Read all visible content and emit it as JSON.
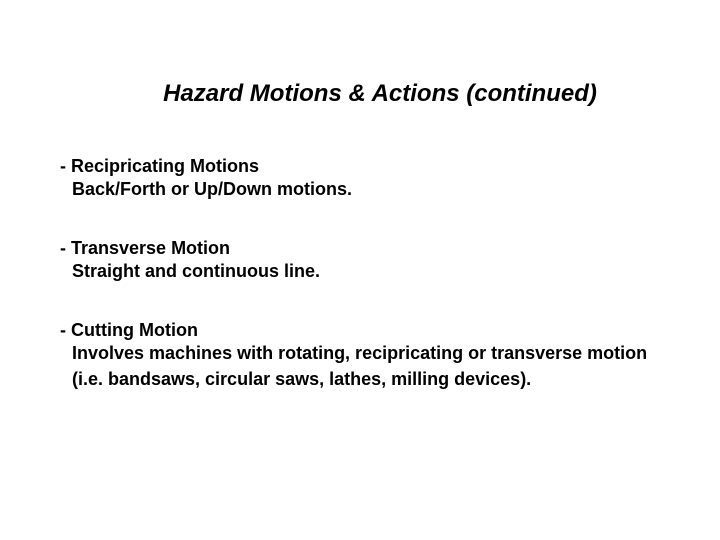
{
  "title": "Hazard Motions & Actions (continued)",
  "items": [
    {
      "heading": "- Recipricating Motions",
      "description": "Back/Forth or Up/Down motions."
    },
    {
      "heading": "- Transverse Motion",
      "description": "Straight and continuous line."
    },
    {
      "heading": "- Cutting Motion",
      "description": "Involves machines with rotating, recipricating or transverse motion (i.e. bandsaws, circular saws, lathes, milling devices)."
    }
  ],
  "style": {
    "background_color": "#ffffff",
    "text_color": "#000000",
    "title_fontsize": 24,
    "body_fontsize": 18,
    "font_family": "Arial"
  }
}
